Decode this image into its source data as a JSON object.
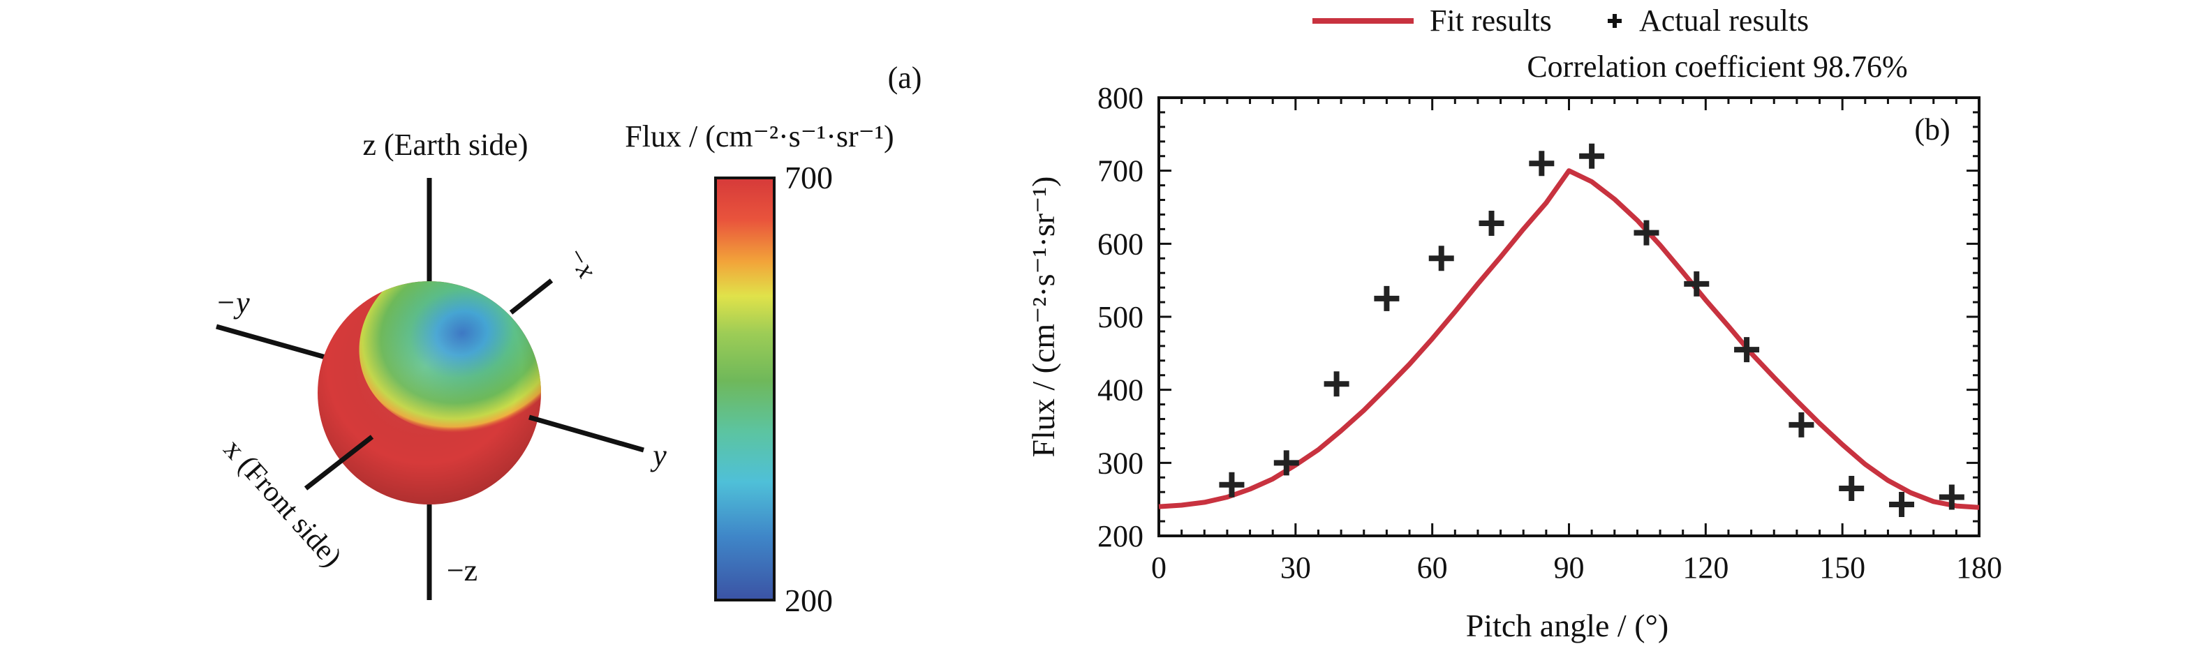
{
  "panel_a": {
    "label": "(a)",
    "colorbar_title": "Flux / (cm⁻²·s⁻¹·sr⁻¹)",
    "colorbar_max": "700",
    "colorbar_min": "200",
    "axes": {
      "z_pos": "z (Earth side)",
      "z_neg": "−z",
      "y_pos": "y",
      "y_neg": "−y",
      "x_pos": "x (Front side)",
      "x_neg": "−x"
    },
    "colors": {
      "high": "#d63a3a",
      "mid": "#6fb85a",
      "low": "#3a6fb8"
    }
  },
  "chart_data": [
    {
      "type": "scatter",
      "panel_label": "(b)",
      "title": "Correlation coefficient 98.76%",
      "xlabel": "Pitch angle / (°)",
      "ylabel": "Flux / (cm⁻²·s⁻¹·sr⁻¹)",
      "xlim": [
        0,
        180
      ],
      "ylim": [
        200,
        800
      ],
      "xticks": [
        "0",
        "30",
        "60",
        "90",
        "120",
        "150",
        "180"
      ],
      "yticks": [
        "200",
        "300",
        "400",
        "500",
        "600",
        "700",
        "800"
      ],
      "legend_position": "top (above plot)",
      "series": [
        {
          "name": "Fit results",
          "kind": "line",
          "color": "#c8323f",
          "x": [
            0,
            5,
            10,
            15,
            20,
            25,
            30,
            35,
            40,
            45,
            50,
            55,
            60,
            65,
            70,
            75,
            80,
            85,
            90,
            95,
            100,
            105,
            110,
            115,
            120,
            125,
            130,
            135,
            140,
            145,
            150,
            155,
            160,
            165,
            170,
            175,
            180
          ],
          "y": [
            240,
            242,
            246,
            253,
            264,
            278,
            297,
            318,
            344,
            372,
            403,
            435,
            470,
            507,
            545,
            582,
            620,
            656,
            700,
            685,
            661,
            632,
            598,
            561,
            523,
            487,
            450,
            417,
            385,
            354,
            325,
            298,
            276,
            259,
            247,
            241,
            239
          ]
        },
        {
          "name": "Actual results",
          "kind": "points",
          "marker": "plus",
          "color": "#222222",
          "x": [
            16,
            28,
            39,
            50,
            62,
            73,
            84,
            95,
            107,
            118,
            129,
            141,
            152,
            163,
            174
          ],
          "y": [
            270,
            300,
            408,
            525,
            580,
            628,
            710,
            720,
            615,
            545,
            455,
            352,
            265,
            243,
            253
          ]
        }
      ]
    }
  ]
}
